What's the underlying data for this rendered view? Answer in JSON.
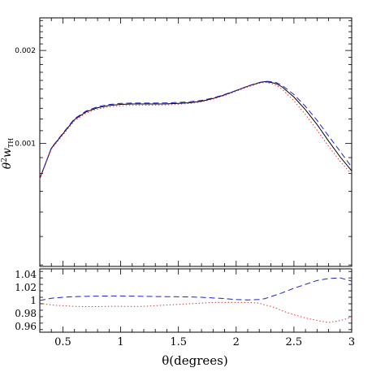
{
  "chart_data": [
    {
      "type": "line",
      "panel": "top",
      "title": "",
      "xlabel": "",
      "ylabel_base": "θ",
      "ylabel_sup": "2",
      "ylabel_main": "w",
      "ylabel_sub": "TH",
      "xlim": [
        0.3,
        3.0
      ],
      "ylim": [
        0.0004,
        0.00255
      ],
      "yticks_labeled": [
        0.001,
        0.002
      ],
      "ytick_labels": [
        "0.001",
        "0.002"
      ],
      "grid": false,
      "series": [
        {
          "color": "#000000",
          "dash": "solid",
          "x": [
            0.3,
            0.4,
            0.5,
            0.6,
            0.7,
            0.8,
            0.9,
            1.0,
            1.1,
            1.2,
            1.3,
            1.4,
            1.5,
            1.6,
            1.7,
            1.8,
            1.9,
            2.0,
            2.1,
            2.2,
            2.25,
            2.3,
            2.35,
            2.4,
            2.5,
            2.6,
            2.7,
            2.8,
            2.9,
            3.0
          ],
          "y": [
            0.00077,
            0.000965,
            0.001075,
            0.001195,
            0.001265,
            0.001305,
            0.001327,
            0.001338,
            0.001342,
            0.001342,
            0.001342,
            0.001343,
            0.001348,
            0.001355,
            0.00137,
            0.001398,
            0.001437,
            0.001483,
            0.001532,
            0.001573,
            0.001585,
            0.001577,
            0.00156,
            0.001522,
            0.001413,
            0.001285,
            0.001152,
            0.001018,
            0.000905,
            0.000815
          ]
        },
        {
          "color": "#2222cc",
          "dash": "dashed",
          "x": [
            0.3,
            0.4,
            0.5,
            0.6,
            0.7,
            0.8,
            0.9,
            1.0,
            1.1,
            1.2,
            1.3,
            1.4,
            1.5,
            1.6,
            1.7,
            1.8,
            1.9,
            2.0,
            2.1,
            2.2,
            2.25,
            2.3,
            2.35,
            2.4,
            2.5,
            2.6,
            2.7,
            2.8,
            2.9,
            3.0
          ],
          "y": [
            0.00077,
            0.000968,
            0.00108,
            0.001202,
            0.001273,
            0.001315,
            0.001337,
            0.001348,
            0.001352,
            0.001352,
            0.001352,
            0.001353,
            0.001358,
            0.001365,
            0.001378,
            0.001404,
            0.001441,
            0.001485,
            0.001534,
            0.001576,
            0.00159,
            0.001585,
            0.001572,
            0.00154,
            0.00144,
            0.001318,
            0.001189,
            0.001057,
            0.000943,
            0.000838
          ]
        },
        {
          "color": "#ee3333",
          "dash": "dotted",
          "x": [
            0.3,
            0.4,
            0.5,
            0.6,
            0.7,
            0.8,
            0.9,
            1.0,
            1.1,
            1.2,
            1.3,
            1.4,
            1.5,
            1.6,
            1.7,
            1.8,
            1.9,
            2.0,
            2.1,
            2.2,
            2.25,
            2.3,
            2.35,
            2.4,
            2.5,
            2.6,
            2.7,
            2.8,
            2.9,
            3.0
          ],
          "y": [
            0.000765,
            0.000958,
            0.001066,
            0.001183,
            0.001253,
            0.001293,
            0.001314,
            0.001325,
            0.001329,
            0.00133,
            0.001331,
            0.001333,
            0.001339,
            0.001348,
            0.001363,
            0.001392,
            0.00143,
            0.001475,
            0.001524,
            0.001565,
            0.001578,
            0.001565,
            0.001542,
            0.001496,
            0.001375,
            0.00124,
            0.001105,
            0.000979,
            0.000876,
            0.000794
          ]
        }
      ]
    },
    {
      "type": "line",
      "panel": "bottom",
      "title": "",
      "xlabel": "θ(degrees)",
      "ylabel": "",
      "xlim": [
        0.3,
        3.0
      ],
      "ylim": [
        0.951,
        1.049
      ],
      "xticks": [
        0.5,
        1,
        1.5,
        2,
        2.5,
        3
      ],
      "xtick_labels": [
        "0.5",
        "1",
        "1.5",
        "2",
        "2.5",
        "3"
      ],
      "yticks": [
        0.96,
        0.98,
        1.0,
        1.02,
        1.04
      ],
      "ytick_labels": [
        "0.96",
        "0.98",
        "1",
        "1.02",
        "1.04"
      ],
      "grid": false,
      "series": [
        {
          "color": "#2222cc",
          "dash": "dashed",
          "x": [
            0.3,
            0.4,
            0.5,
            0.6,
            0.7,
            0.8,
            0.9,
            1.0,
            1.1,
            1.2,
            1.3,
            1.4,
            1.5,
            1.6,
            1.7,
            1.8,
            1.9,
            2.0,
            2.1,
            2.2,
            2.25,
            2.3,
            2.35,
            2.4,
            2.5,
            2.6,
            2.7,
            2.8,
            2.9,
            3.0
          ],
          "y": [
            1.0,
            1.0035,
            1.005,
            1.006,
            1.0065,
            1.0068,
            1.007,
            1.007,
            1.0068,
            1.0065,
            1.0062,
            1.006,
            1.0058,
            1.0055,
            1.005,
            1.004,
            1.003,
            1.0015,
            1.001,
            1.0015,
            1.003,
            1.006,
            1.009,
            1.012,
            1.019,
            1.025,
            1.031,
            1.034,
            1.035,
            1.03
          ]
        },
        {
          "color": "#ee3333",
          "dash": "dotted",
          "x": [
            0.3,
            0.4,
            0.5,
            0.6,
            0.7,
            0.8,
            0.9,
            1.0,
            1.1,
            1.2,
            1.3,
            1.4,
            1.5,
            1.6,
            1.7,
            1.8,
            1.9,
            2.0,
            2.1,
            2.2,
            2.25,
            2.3,
            2.35,
            2.4,
            2.5,
            2.6,
            2.7,
            2.8,
            2.9,
            3.0
          ],
          "y": [
            0.996,
            0.993,
            0.992,
            0.991,
            0.9905,
            0.9905,
            0.991,
            0.991,
            0.9908,
            0.991,
            0.992,
            0.993,
            0.994,
            0.995,
            0.996,
            0.997,
            0.997,
            0.997,
            0.997,
            0.996,
            0.993,
            0.991,
            0.988,
            0.984,
            0.978,
            0.973,
            0.969,
            0.966,
            0.969,
            0.974
          ]
        }
      ]
    }
  ]
}
